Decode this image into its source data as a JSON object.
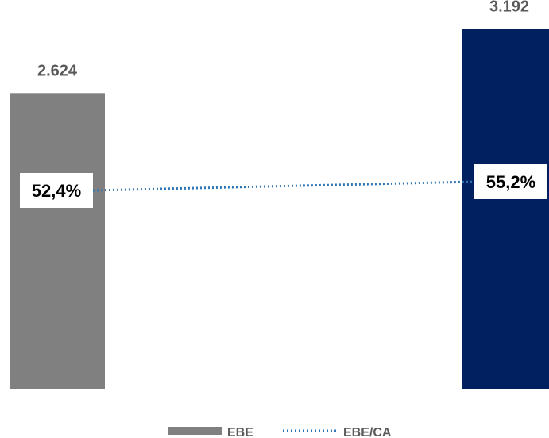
{
  "chart_data": {
    "type": "bar",
    "categories": [
      "",
      ""
    ],
    "series": [
      {
        "name": "EBE",
        "kind": "bar",
        "values": [
          2624,
          3192
        ],
        "value_labels": [
          "2.624",
          "3.192"
        ],
        "colors": [
          "#808080",
          "#002060"
        ]
      },
      {
        "name": "EBE/CA",
        "kind": "line",
        "style": "dotted",
        "color": "#2E75B6",
        "values": [
          52.4,
          55.2
        ],
        "value_labels": [
          "52,4%",
          "55,2%"
        ]
      }
    ],
    "ylim": [
      0,
      3450
    ],
    "y2lim": [
      0,
      100
    ],
    "legend": "bottom-center",
    "grid": false,
    "title": "",
    "xlabel": "",
    "ylabel": ""
  }
}
